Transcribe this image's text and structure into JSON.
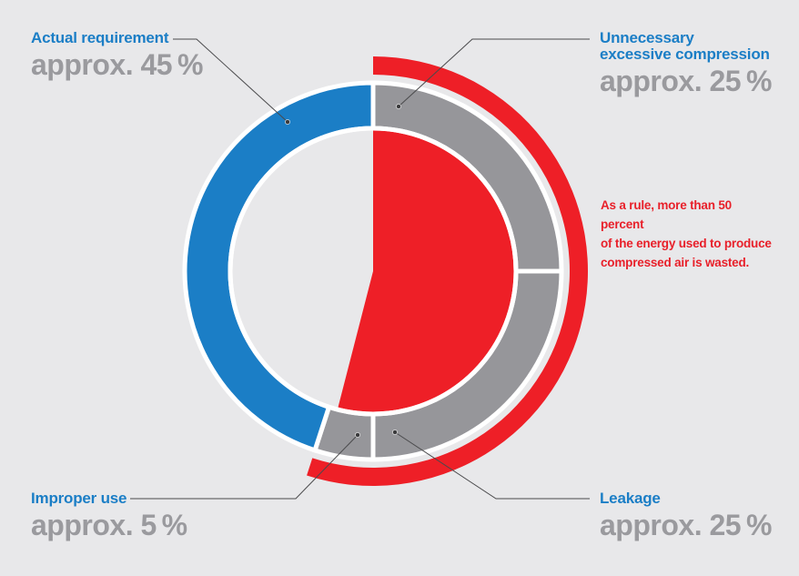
{
  "colors": {
    "actual": "#1b7ec6",
    "waste": "#96969a",
    "highlight": "#ee1f27",
    "background": "#e8e8ea",
    "label_gray": "#9a9a9e"
  },
  "chart_data": {
    "type": "pie",
    "variant": "donut",
    "slices": [
      {
        "name": "Unnecessary excessive compression",
        "value": 25,
        "value_label": "approx. 25 %"
      },
      {
        "name": "Leakage",
        "value": 25,
        "value_label": "approx. 25 %"
      },
      {
        "name": "Improper use",
        "value": 5,
        "value_label": "approx. 5 %"
      },
      {
        "name": "Actual requirement",
        "value": 45,
        "value_label": "approx. 45 %"
      }
    ],
    "wasted_share": 55,
    "legend_placement": "labels-around"
  },
  "labels": {
    "actual": {
      "name": "Actual requirement",
      "value": "approx. 45 %"
    },
    "excessive": {
      "name_line1": "Unnecessary",
      "name_line2": "excessive compression",
      "value": "approx. 25 %"
    },
    "improper": {
      "name": "Improper use",
      "value": "approx. 5 %"
    },
    "leakage": {
      "name": "Leakage",
      "value": "approx. 25 %"
    }
  },
  "note": {
    "line1": "As a rule, more than 50 percent",
    "line2": "of the energy used to produce",
    "line3": "compressed air is wasted."
  }
}
